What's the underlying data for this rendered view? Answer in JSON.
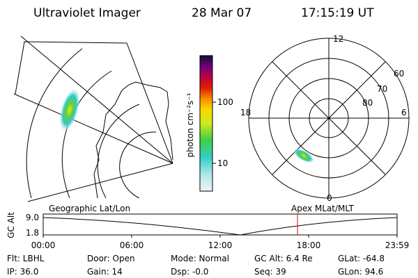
{
  "header": {
    "title": "Ultraviolet Imager",
    "date": "28 Mar 07",
    "time": "17:15:19 UT"
  },
  "colorbar": {
    "label": "photon cm⁻²s⁻¹",
    "ticks": [
      "100",
      "10"
    ]
  },
  "polar": {
    "mlt_labels": [
      "12",
      "18",
      "6",
      "0"
    ],
    "lat_labels": [
      "60",
      "70",
      "80"
    ]
  },
  "timeline": {
    "left_label": "Geographic Lat/Lon",
    "right_label": "Apex MLat/MLT",
    "axis_label": "GC Alt",
    "yticks": [
      "9.0",
      "1.8"
    ],
    "xticks": [
      "00:00",
      "06:00",
      "12:00",
      "18:00",
      "23:59"
    ]
  },
  "footer": {
    "rows": [
      [
        "Flt: LBHL",
        "Door: Open",
        "Mode: Normal",
        "GC Alt: 6.4 Re",
        "GLat: -64.8"
      ],
      [
        "IP: 36.0",
        "Gain: 14",
        "Dsp: -0.0",
        "Seq: 39",
        "GLon:  94.6"
      ]
    ]
  }
}
